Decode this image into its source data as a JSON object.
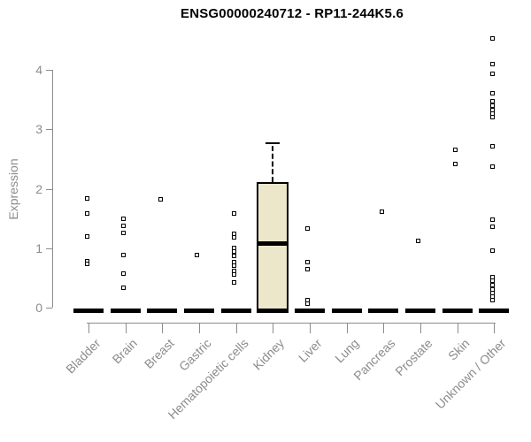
{
  "title": "ENSG00000240712 - RP11-244K5.6",
  "chart_data": {
    "type": "boxplot",
    "title": "ENSG00000240712 - RP11-244K5.6",
    "xlabel": "",
    "ylabel": "Expression",
    "ylim": [
      0,
      4.6
    ],
    "yticks": [
      0,
      1,
      2,
      3,
      4
    ],
    "grid": false,
    "legend": null,
    "marker_style": "open-square",
    "colors": {
      "box_fill": "#ece7cb",
      "box_border": "#000000",
      "axis": "#8c8c8c",
      "marker": "#000000",
      "title": "#000000",
      "background": "#ffffff"
    },
    "categories": [
      "Bladder",
      "Brain",
      "Breast",
      "Gastric",
      "Hematopoietic cells",
      "Kidney",
      "Liver",
      "Lung",
      "Pancreas",
      "Prostate",
      "Skin",
      "Unknown / Other"
    ],
    "series": [
      {
        "category": "Bladder",
        "median": 0,
        "points": [
          1.83,
          1.58,
          1.2,
          0.78,
          0.73
        ]
      },
      {
        "category": "Brain",
        "median": 0,
        "points": [
          1.49,
          1.38,
          1.26,
          0.89,
          0.57,
          0.34
        ]
      },
      {
        "category": "Breast",
        "median": 0,
        "points": [
          1.82
        ]
      },
      {
        "category": "Gastric",
        "median": 0,
        "points": [
          0.89
        ]
      },
      {
        "category": "Hematopoietic cells",
        "median": 0,
        "points": [
          1.58,
          1.24,
          1.18,
          1.0,
          0.94,
          0.87,
          0.77,
          0.71,
          0.62,
          0.56,
          0.42
        ]
      },
      {
        "category": "Kidney",
        "median": 1.09,
        "box": {
          "q1": 0,
          "q3": 2.11,
          "upper_whisker": 2.77,
          "lower_whisker": 0
        },
        "points": []
      },
      {
        "category": "Liver",
        "median": 0,
        "points": [
          1.33,
          0.76,
          0.64,
          0.12,
          0.07
        ]
      },
      {
        "category": "Lung",
        "median": 0,
        "points": []
      },
      {
        "category": "Pancreas",
        "median": 0,
        "points": [
          1.62
        ]
      },
      {
        "category": "Prostate",
        "median": 0,
        "points": [
          1.13
        ]
      },
      {
        "category": "Skin",
        "median": 0,
        "points": [
          2.66,
          2.42
        ]
      },
      {
        "category": "Unknown / Other",
        "median": 0,
        "points": [
          4.53,
          4.09,
          3.94,
          3.61,
          3.47,
          3.4,
          3.33,
          3.27,
          3.21,
          2.72,
          2.37,
          1.48,
          1.36,
          0.96,
          0.52,
          0.45,
          0.38,
          0.31,
          0.25,
          0.19,
          0.13
        ]
      }
    ]
  }
}
